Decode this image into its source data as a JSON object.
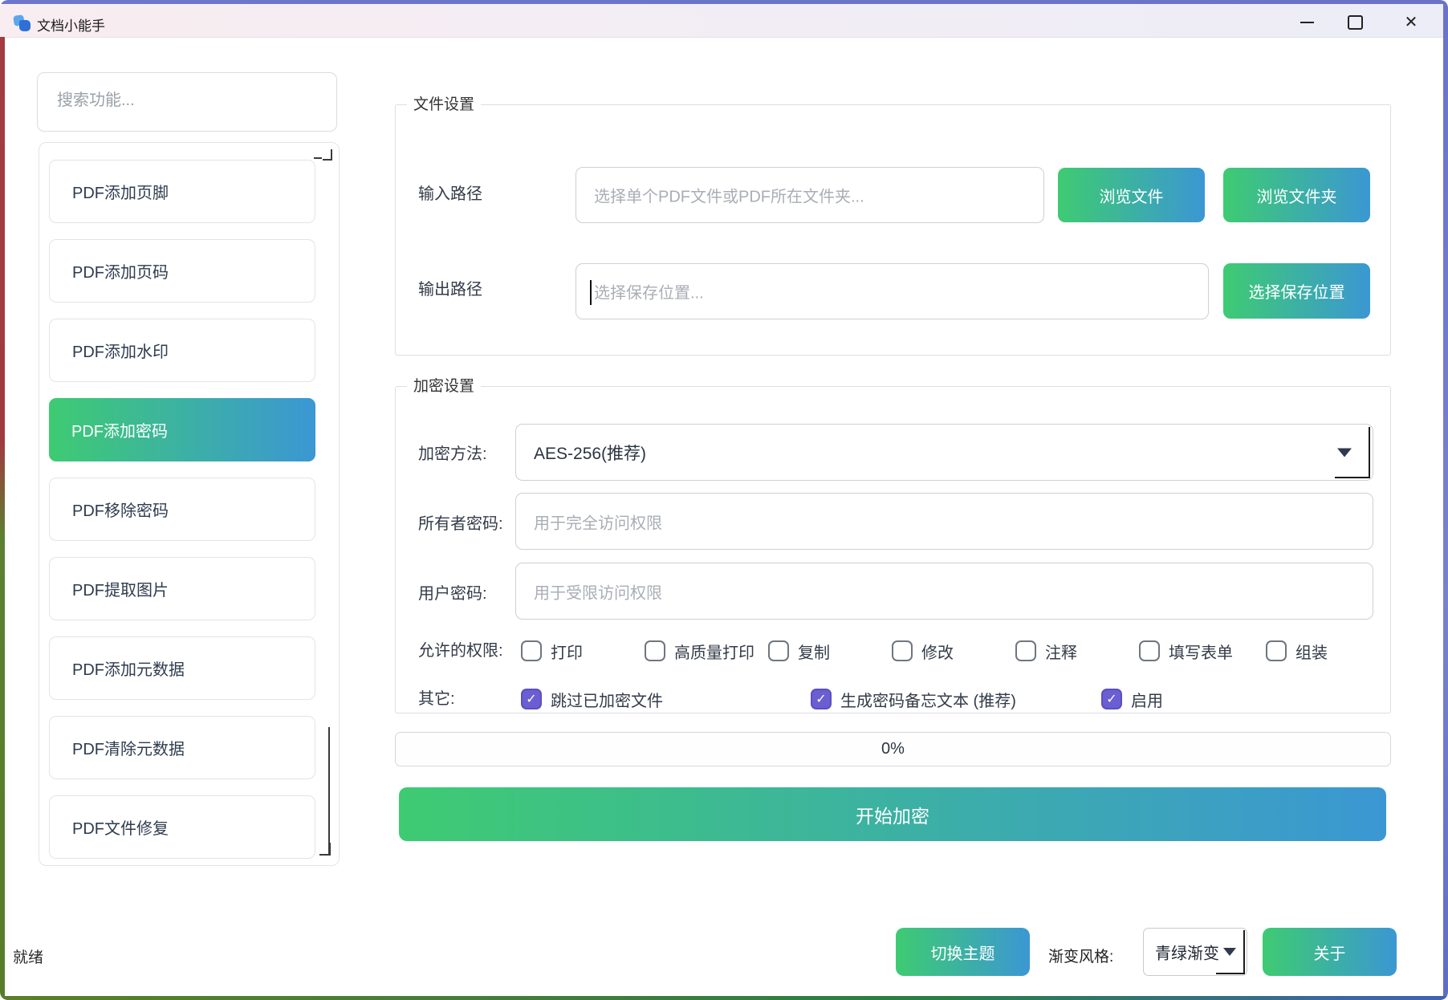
{
  "window": {
    "title": "文档小能手",
    "icons": {
      "minimize": "minimize-dash",
      "maximize": "maximize-square",
      "close": "✕"
    }
  },
  "sidebar": {
    "search_placeholder": "搜索功能...",
    "items": [
      {
        "id": "add-footer",
        "label": "PDF添加页脚",
        "selected": false
      },
      {
        "id": "add-page-number",
        "label": "PDF添加页码",
        "selected": false
      },
      {
        "id": "add-watermark",
        "label": "PDF添加水印",
        "selected": false
      },
      {
        "id": "add-password",
        "label": "PDF添加密码",
        "selected": true
      },
      {
        "id": "remove-password",
        "label": "PDF移除密码",
        "selected": false
      },
      {
        "id": "extract-images",
        "label": "PDF提取图片",
        "selected": false
      },
      {
        "id": "add-metadata",
        "label": "PDF添加元数据",
        "selected": false
      },
      {
        "id": "clear-metadata",
        "label": "PDF清除元数据",
        "selected": false
      },
      {
        "id": "repair-file",
        "label": "PDF文件修复",
        "selected": false
      }
    ]
  },
  "file_settings": {
    "title": "文件设置",
    "input_row": {
      "label": "输入路径",
      "placeholder": "选择单个PDF文件或PDF所在文件夹...",
      "browse_file_button": "浏览文件",
      "browse_folder_button": "浏览文件夹"
    },
    "output_row": {
      "label": "输出路径",
      "placeholder": "选择保存位置...",
      "choose_location_button": "选择保存位置"
    }
  },
  "encrypt_settings": {
    "title": "加密设置",
    "method": {
      "label": "加密方法:",
      "value": "AES-256(推荐)"
    },
    "owner_password": {
      "label": "所有者密码:",
      "placeholder": "用于完全访问权限"
    },
    "user_password": {
      "label": "用户密码:",
      "placeholder": "用于受限访问权限"
    },
    "permissions": {
      "label": "允许的权限:",
      "options": [
        {
          "id": "print",
          "label": "打印",
          "checked": false
        },
        {
          "id": "high-quality-print",
          "label": "高质量打印",
          "checked": false
        },
        {
          "id": "copy",
          "label": "复制",
          "checked": false
        },
        {
          "id": "modify",
          "label": "修改",
          "checked": false
        },
        {
          "id": "annotate",
          "label": "注释",
          "checked": false
        },
        {
          "id": "fill-forms",
          "label": "填写表单",
          "checked": false
        },
        {
          "id": "assemble",
          "label": "组装",
          "checked": false
        }
      ]
    },
    "other": {
      "label": "其它:",
      "options": [
        {
          "id": "skip-encrypted",
          "label": "跳过已加密文件",
          "checked": true
        },
        {
          "id": "generate-password-memo",
          "label": "生成密码备忘文本 (推荐)",
          "checked": true
        },
        {
          "id": "enable",
          "label": "启用",
          "checked": true
        }
      ]
    }
  },
  "progress": {
    "value": "0%"
  },
  "actions": {
    "start_button": "开始加密"
  },
  "status_bar": {
    "status": "就绪",
    "theme_button": "切换主题",
    "gradient_label": "渐变风格:",
    "gradient_value": "青绿渐变",
    "about_button": "关于"
  },
  "colors": {
    "accent_gradient_start": "#3ecb72",
    "accent_gradient_end": "#3b97d3",
    "checked_checkbox": "#6a5ed2",
    "frame_top": "#6a73c8",
    "frame_left_top": "#a43b43",
    "frame_left_bottom": "#567d2a"
  }
}
